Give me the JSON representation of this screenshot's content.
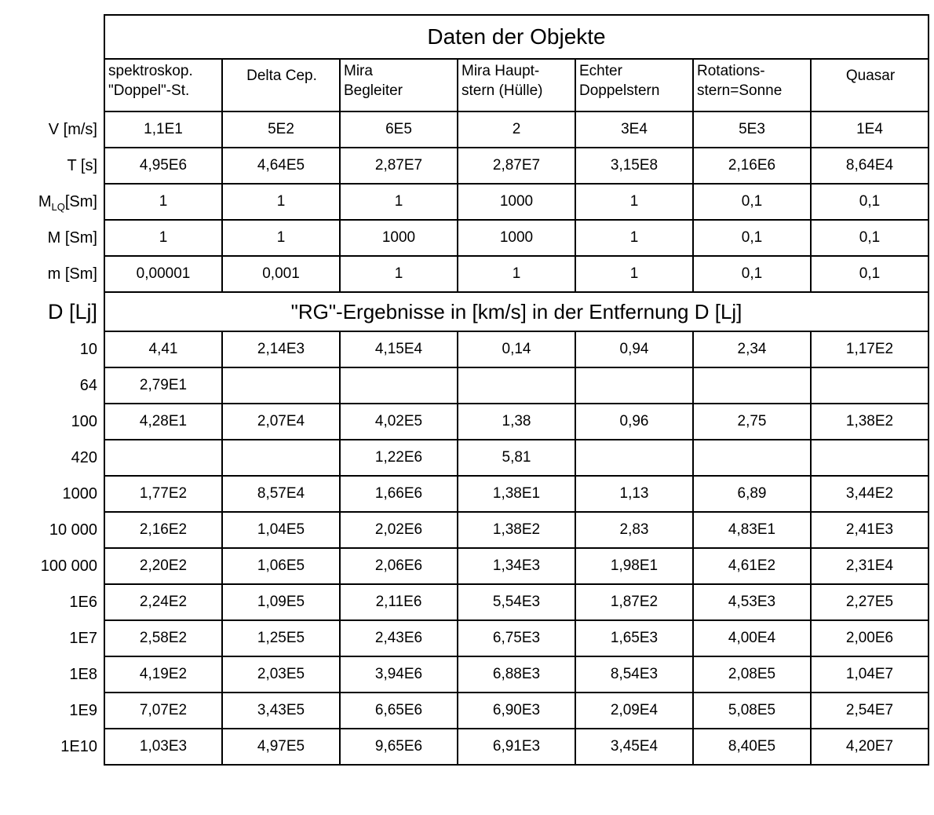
{
  "chart_data": {
    "type": "table",
    "title": "Daten der Objekte",
    "section_label": "D [Lj]",
    "section_header": "\"RG\"-Ergebnisse in [km/s] in der Entfernung D [Lj]",
    "columns": [
      "spektroskop.\n\"Doppel\"-St.",
      "Delta Cep.",
      "Mira\nBegleiter",
      "Mira Haupt-\nstern (Hülle)",
      "Echter\nDoppelstern",
      "Rotations-\nstern=Sonne",
      "Quasar"
    ],
    "object_rows": [
      {
        "label": "V [m/s]",
        "cells": [
          "1,1E1",
          "5E2",
          "6E5",
          "2",
          "3E4",
          "5E3",
          "1E4"
        ]
      },
      {
        "label": "T [s]",
        "cells": [
          "4,95E6",
          "4,64E5",
          "2,87E7",
          "2,87E7",
          "3,15E8",
          "2,16E6",
          "8,64E4"
        ]
      },
      {
        "label": {
          "pre": "M",
          "sub": "LQ",
          "post": "[Sm]"
        },
        "cells": [
          "1",
          "1",
          "1",
          "1000",
          "1",
          "0,1",
          "0,1"
        ]
      },
      {
        "label": "M [Sm]",
        "cells": [
          "1",
          "1",
          "1000",
          "1000",
          "1",
          "0,1",
          "0,1"
        ]
      },
      {
        "label": "m [Sm]",
        "cells": [
          "0,00001",
          "0,001",
          "1",
          "1",
          "1",
          "0,1",
          "0,1"
        ]
      }
    ],
    "distance_rows": [
      {
        "label": "10",
        "cells": [
          "4,41",
          "2,14E3",
          "4,15E4",
          "0,14",
          "0,94",
          "2,34",
          "1,17E2"
        ]
      },
      {
        "label": "64",
        "cells": [
          "2,79E1",
          "",
          "",
          "",
          "",
          "",
          ""
        ]
      },
      {
        "label": "100",
        "cells": [
          "4,28E1",
          "2,07E4",
          "4,02E5",
          "1,38",
          "0,96",
          "2,75",
          "1,38E2"
        ]
      },
      {
        "label": "420",
        "cells": [
          "",
          "",
          "1,22E6",
          "5,81",
          "",
          "",
          ""
        ]
      },
      {
        "label": "1000",
        "cells": [
          "1,77E2",
          "8,57E4",
          "1,66E6",
          "1,38E1",
          "1,13",
          "6,89",
          "3,44E2"
        ]
      },
      {
        "label": "10 000",
        "cells": [
          "2,16E2",
          "1,04E5",
          "2,02E6",
          "1,38E2",
          "2,83",
          "4,83E1",
          "2,41E3"
        ]
      },
      {
        "label": "100 000",
        "cells": [
          "2,20E2",
          "1,06E5",
          "2,06E6",
          "1,34E3",
          "1,98E1",
          "4,61E2",
          "2,31E4"
        ]
      },
      {
        "label": "1E6",
        "cells": [
          "2,24E2",
          "1,09E5",
          "2,11E6",
          "5,54E3",
          "1,87E2",
          "4,53E3",
          "2,27E5"
        ]
      },
      {
        "label": "1E7",
        "cells": [
          "2,58E2",
          "1,25E5",
          "2,43E6",
          "6,75E3",
          "1,65E3",
          "4,00E4",
          "2,00E6"
        ]
      },
      {
        "label": "1E8",
        "cells": [
          "4,19E2",
          "2,03E5",
          "3,94E6",
          "6,88E3",
          "8,54E3",
          "2,08E5",
          "1,04E7"
        ]
      },
      {
        "label": "1E9",
        "cells": [
          "7,07E2",
          "3,43E5",
          "6,65E6",
          "6,90E3",
          "2,09E4",
          "5,08E5",
          "2,54E7"
        ]
      },
      {
        "label": "1E10",
        "cells": [
          "1,03E3",
          "4,97E5",
          "9,65E6",
          "6,91E3",
          "3,45E4",
          "8,40E5",
          "4,20E7"
        ]
      }
    ],
    "colors": {
      "border": "#000000",
      "background": "#ffffff",
      "text": "#000000"
    }
  }
}
